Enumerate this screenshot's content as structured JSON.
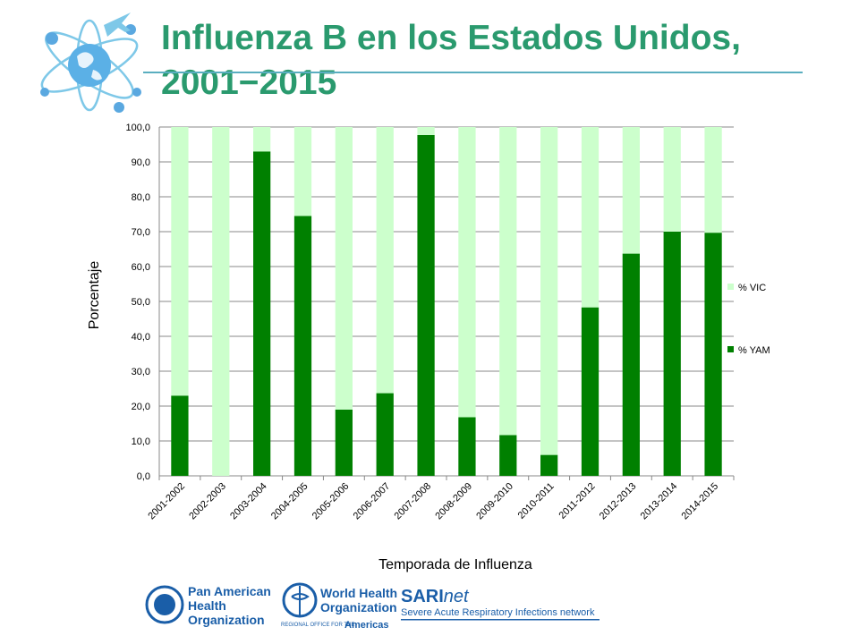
{
  "header": {
    "title": "Influenza B en los Estados Unidos, 2001−2015"
  },
  "chart_data": {
    "type": "bar",
    "stacked": true,
    "title": "",
    "xlabel": "Temporada de Influenza",
    "ylabel": "Porcentaje",
    "ylim": [
      0,
      100
    ],
    "yticks": [
      "0,0",
      "10,0",
      "20,0",
      "30,0",
      "40,0",
      "50,0",
      "60,0",
      "70,0",
      "80,0",
      "90,0",
      "100,0"
    ],
    "grid": true,
    "legend_position": "right",
    "categories": [
      "2001-2002",
      "2002-2003",
      "2003-2004",
      "2004-2005",
      "2005-2006",
      "2006-2007",
      "2007-2008",
      "2008-2009",
      "2009-2010",
      "2010-2011",
      "2011-2012",
      "2012-2013",
      "2013-2014",
      "2014-2015"
    ],
    "series": [
      {
        "name": "% YAM",
        "color": "#008000",
        "values": [
          23,
          0,
          93,
          74.5,
          19,
          23.7,
          97.7,
          16.8,
          11.7,
          6,
          48.3,
          63.7,
          70,
          69.7
        ]
      },
      {
        "name": "% VIC",
        "color": "#ccffcc",
        "values": [
          77,
          100,
          7,
          25.5,
          81,
          76.3,
          2.3,
          83.2,
          88.3,
          94,
          51.7,
          36.3,
          30,
          30.3
        ]
      }
    ]
  },
  "footer": {
    "logos": [
      {
        "name": "Pan American Health Organization",
        "lines": [
          "Pan American",
          "Health",
          "Organization"
        ]
      },
      {
        "name": "World Health Organization",
        "lines": [
          "World Health",
          "Organization"
        ],
        "sub": "REGIONAL OFFICE FOR THE",
        "region": "Americas"
      },
      {
        "name": "SARInet",
        "bold": "SARI",
        "italic": "net",
        "tagline": "Severe Acute Respiratory Infections network"
      }
    ]
  }
}
